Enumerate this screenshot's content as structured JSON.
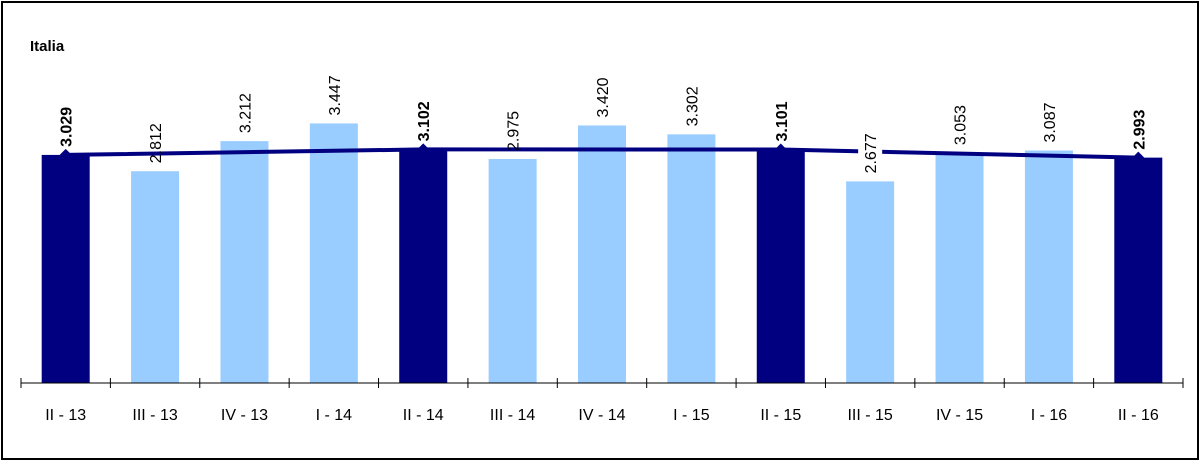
{
  "chart_data": {
    "type": "bar",
    "title": "Italia",
    "xlabel": "",
    "ylabel": "",
    "categories": [
      "II - 13",
      "III - 13",
      "IV - 13",
      "I - 14",
      "II - 14",
      "III - 14",
      "IV - 14",
      "I - 15",
      "II - 15",
      "III - 15",
      "IV - 15",
      "I - 16",
      "II - 16"
    ],
    "series": [
      {
        "type": "bar",
        "values": [
          3.029,
          2.812,
          3.212,
          3.447,
          3.102,
          2.975,
          3.42,
          3.302,
          3.101,
          2.677,
          3.053,
          3.087,
          2.993
        ],
        "labels": [
          "3.029",
          "2.812",
          "3.212",
          "3.447",
          "3.102",
          "2.975",
          "3.420",
          "3.302",
          "3.101",
          "2.677",
          "3.053",
          "3.087",
          "2.993"
        ],
        "highlight": [
          true,
          false,
          false,
          false,
          true,
          false,
          false,
          false,
          true,
          false,
          false,
          false,
          true
        ]
      },
      {
        "type": "line",
        "points": [
          {
            "category": "II - 13",
            "value": 3.029
          },
          {
            "category": "II - 14",
            "value": 3.102
          },
          {
            "category": "II - 15",
            "value": 3.101
          },
          {
            "category": "II - 16",
            "value": 2.993
          }
        ]
      }
    ],
    "ylim": [
      0,
      3.62
    ],
    "grid": false,
    "legend": "none",
    "colors": {
      "highlight_bar": "#000080",
      "regular_bar": "#99ccff",
      "line": "#000080"
    }
  }
}
